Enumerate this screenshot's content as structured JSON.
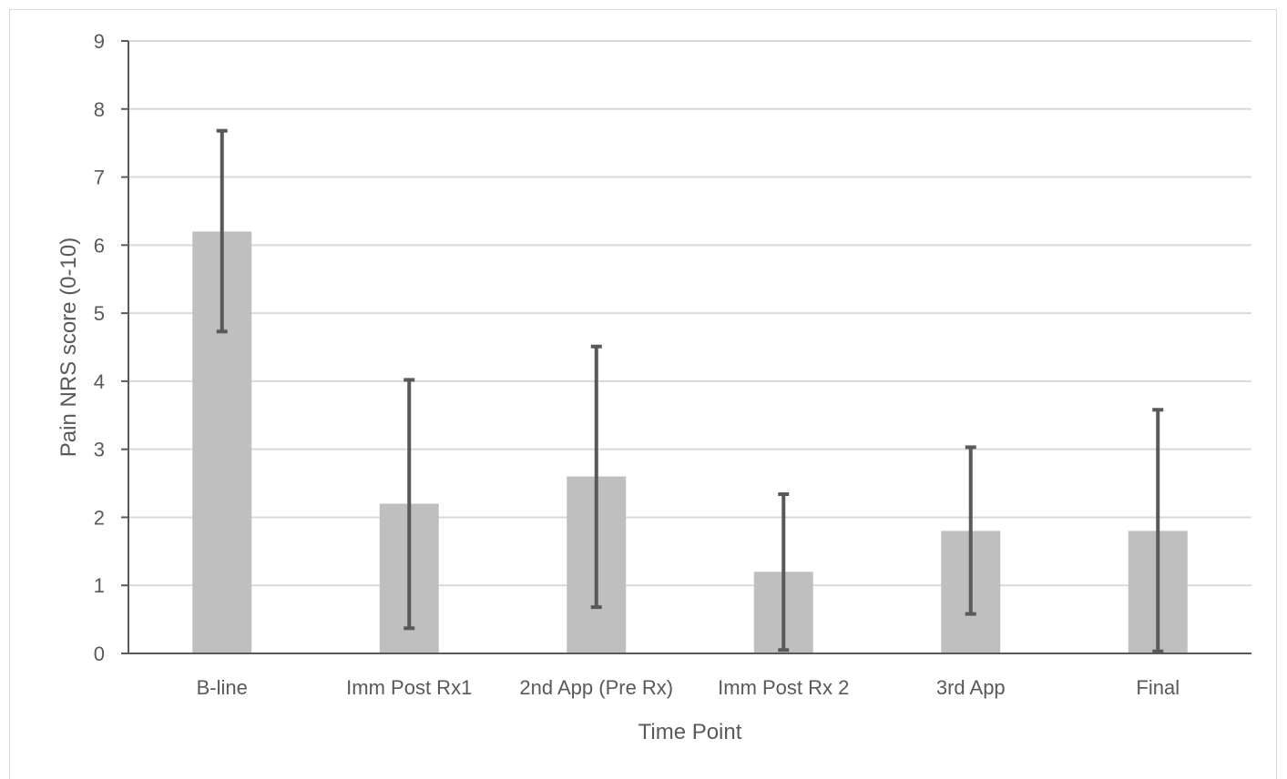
{
  "chart_data": {
    "type": "bar",
    "title": "",
    "xlabel": "Time Point",
    "ylabel": "Pain NRS score (0-10)",
    "ylim": [
      0,
      9
    ],
    "yticks": [
      0,
      1,
      2,
      3,
      4,
      5,
      6,
      7,
      8,
      9
    ],
    "grid": true,
    "categories": [
      "B-line",
      "Imm Post Rx1",
      "2nd App (Pre Rx)",
      "Imm Post Rx 2",
      "3rd App",
      "Final"
    ],
    "values": [
      6.2,
      2.2,
      2.6,
      1.2,
      1.8,
      1.8
    ],
    "error_low": [
      4.73,
      0.37,
      0.68,
      0.05,
      0.58,
      0.03
    ],
    "error_high": [
      7.68,
      4.02,
      4.51,
      2.34,
      3.03,
      3.58
    ],
    "bar_color": "#bfbfbf",
    "error_color": "#595959",
    "grid_color": "#d9d9d9",
    "axis_color": "#595959"
  }
}
